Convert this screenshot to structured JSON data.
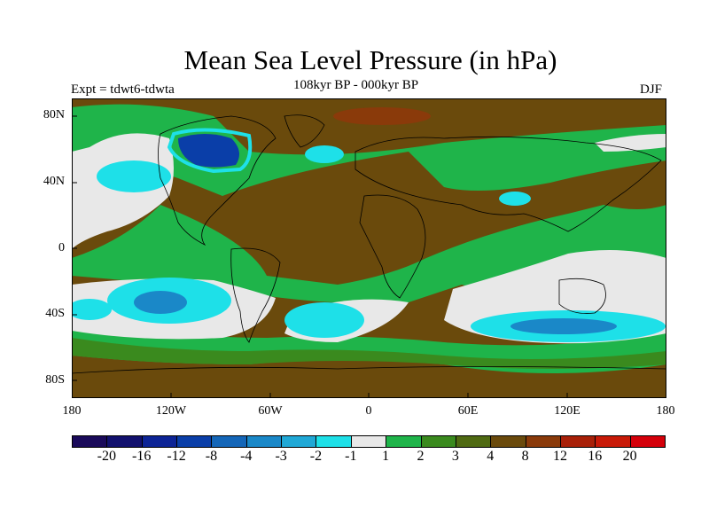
{
  "title": "Mean Sea Level Pressure (in hPa)",
  "left_subtitle": "Expt = tdwt6-tdwta",
  "center_subtitle": "108kyr BP - 000kyr BP",
  "right_subtitle": "DJF",
  "lat_labels": [
    "80N",
    "40N",
    "0",
    "40S",
    "80S"
  ],
  "lon_labels": [
    "180",
    "120W",
    "60W",
    "0",
    "60E",
    "120E",
    "180"
  ],
  "colorbar": {
    "labels": [
      "-20",
      "-16",
      "-12",
      "-8",
      "-4",
      "-3",
      "-2",
      "-1",
      "1",
      "2",
      "3",
      "4",
      "8",
      "12",
      "16",
      "20"
    ],
    "colors": [
      "#1a0a5a",
      "#12116e",
      "#0d2496",
      "#0a3ea8",
      "#1466b8",
      "#1a88c8",
      "#20a8d6",
      "#1ee0e8",
      "#e8e8e8",
      "#1fb44a",
      "#3a8a1e",
      "#4f6a12",
      "#6a4a0c",
      "#8a3a0a",
      "#a82008",
      "#c81a08",
      "#d4000a"
    ]
  },
  "legend_title": "",
  "colors": {
    "land_dark": "#6a4a0c",
    "green": "#1fb44a",
    "dark_green": "#3a8a1e",
    "cyan": "#1ee0e8",
    "blue": "#1466b8",
    "white": "#e8e8e8",
    "red_brown": "#8a3a0a"
  }
}
